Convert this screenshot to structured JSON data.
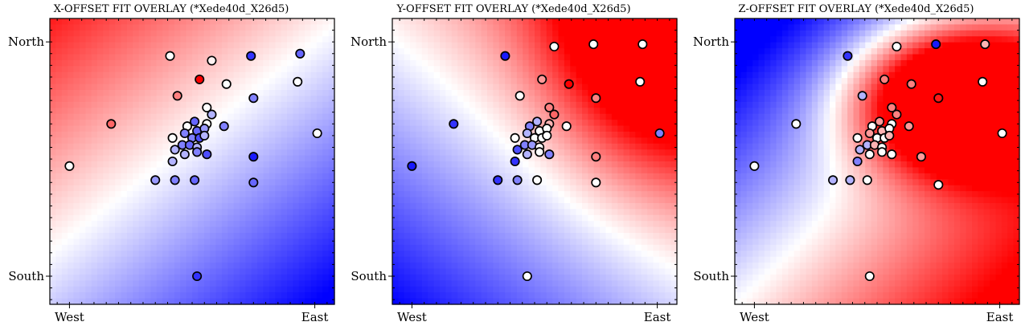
{
  "chart_data": [
    {
      "type": "scatter",
      "title": "X-OFFSET FIT OVERLAY (*Xede40d_X26d5)",
      "xticks": [
        "West",
        "East"
      ],
      "yticks": [
        "North",
        "South"
      ],
      "xlim": [
        -0.08,
        1.08
      ],
      "ylim": [
        -0.12,
        1.1
      ],
      "background": {
        "kind": "linear",
        "vx": -1.0,
        "vy": 1.2,
        "bias": -0.2,
        "scale": 0.75
      },
      "points": [
        {
          "x": 0.41,
          "y": 0.94,
          "v": 0.0
        },
        {
          "x": 0.58,
          "y": 0.92,
          "v": 0.05
        },
        {
          "x": 0.74,
          "y": 0.94,
          "v": -0.8
        },
        {
          "x": 0.94,
          "y": 0.95,
          "v": -0.6
        },
        {
          "x": 0.53,
          "y": 0.84,
          "v": 1.0
        },
        {
          "x": 0.64,
          "y": 0.82,
          "v": 0.0
        },
        {
          "x": 0.93,
          "y": 0.83,
          "v": 0.0
        },
        {
          "x": 0.44,
          "y": 0.77,
          "v": 0.5
        },
        {
          "x": 0.75,
          "y": 0.76,
          "v": -0.5
        },
        {
          "x": 0.17,
          "y": 0.65,
          "v": 0.6
        },
        {
          "x": 0.56,
          "y": 0.72,
          "v": 0.0
        },
        {
          "x": 0.58,
          "y": 0.69,
          "v": -0.3
        },
        {
          "x": 0.51,
          "y": 0.66,
          "v": -0.6
        },
        {
          "x": 0.48,
          "y": 0.64,
          "v": 0.0
        },
        {
          "x": 0.56,
          "y": 0.65,
          "v": 0.0
        },
        {
          "x": 0.63,
          "y": 0.64,
          "v": -0.5
        },
        {
          "x": 0.42,
          "y": 0.59,
          "v": 0.0
        },
        {
          "x": 0.47,
          "y": 0.61,
          "v": -0.5
        },
        {
          "x": 0.52,
          "y": 0.62,
          "v": -0.6
        },
        {
          "x": 0.55,
          "y": 0.63,
          "v": -0.4
        },
        {
          "x": 0.5,
          "y": 0.59,
          "v": -0.5
        },
        {
          "x": 0.53,
          "y": 0.59,
          "v": -0.7
        },
        {
          "x": 0.55,
          "y": 0.6,
          "v": -0.3
        },
        {
          "x": 0.46,
          "y": 0.56,
          "v": -0.5
        },
        {
          "x": 0.49,
          "y": 0.56,
          "v": -0.6
        },
        {
          "x": 0.52,
          "y": 0.55,
          "v": -0.3
        },
        {
          "x": 0.43,
          "y": 0.54,
          "v": -0.3
        },
        {
          "x": 0.47,
          "y": 0.52,
          "v": -0.3
        },
        {
          "x": 0.52,
          "y": 0.53,
          "v": -0.5
        },
        {
          "x": 0.56,
          "y": 0.52,
          "v": -0.7
        },
        {
          "x": 0.42,
          "y": 0.49,
          "v": -0.3
        },
        {
          "x": 0.0,
          "y": 0.47,
          "v": 0.0
        },
        {
          "x": 0.75,
          "y": 0.51,
          "v": -0.9
        },
        {
          "x": 1.01,
          "y": 0.61,
          "v": 0.0
        },
        {
          "x": 0.35,
          "y": 0.41,
          "v": -0.4
        },
        {
          "x": 0.43,
          "y": 0.41,
          "v": -0.5
        },
        {
          "x": 0.51,
          "y": 0.41,
          "v": -0.6
        },
        {
          "x": 0.75,
          "y": 0.4,
          "v": -0.6
        },
        {
          "x": 0.52,
          "y": 0.0,
          "v": -0.8
        }
      ]
    },
    {
      "type": "scatter",
      "title": "Y-OFFSET FIT OVERLAY (*Xede40d_X26d5)",
      "xticks": [
        "West",
        "East"
      ],
      "yticks": [
        "North",
        "South"
      ],
      "xlim": [
        -0.08,
        1.08
      ],
      "ylim": [
        -0.12,
        1.1
      ],
      "background": {
        "kind": "blob",
        "base": {
          "vx": 0.9,
          "vy": 1.1,
          "bias": -1.05,
          "scale": 0.8
        },
        "blob": {
          "cx": 1.05,
          "cy": 1.05,
          "sx": 0.45,
          "sy": 0.55,
          "amp": 1.3
        }
      },
      "points": [
        {
          "x": 0.38,
          "y": 0.94,
          "v": -0.9
        },
        {
          "x": 0.58,
          "y": 0.98,
          "v": 0.0
        },
        {
          "x": 0.74,
          "y": 0.99,
          "v": 0.0
        },
        {
          "x": 0.94,
          "y": 0.99,
          "v": 0.0
        },
        {
          "x": 0.53,
          "y": 0.84,
          "v": 0.4
        },
        {
          "x": 0.64,
          "y": 0.82,
          "v": 1.0
        },
        {
          "x": 0.93,
          "y": 0.83,
          "v": 0.0
        },
        {
          "x": 0.44,
          "y": 0.77,
          "v": 0.0
        },
        {
          "x": 0.75,
          "y": 0.76,
          "v": 0.5
        },
        {
          "x": 0.17,
          "y": 0.65,
          "v": -0.8
        },
        {
          "x": 0.56,
          "y": 0.72,
          "v": 0.5
        },
        {
          "x": 0.58,
          "y": 0.69,
          "v": 0.6
        },
        {
          "x": 0.51,
          "y": 0.66,
          "v": -0.3
        },
        {
          "x": 0.48,
          "y": 0.64,
          "v": -0.5
        },
        {
          "x": 0.56,
          "y": 0.65,
          "v": 0.3
        },
        {
          "x": 0.63,
          "y": 0.64,
          "v": 0.0
        },
        {
          "x": 0.42,
          "y": 0.59,
          "v": 0.0
        },
        {
          "x": 0.47,
          "y": 0.61,
          "v": -0.3
        },
        {
          "x": 0.52,
          "y": 0.62,
          "v": 0.0
        },
        {
          "x": 0.55,
          "y": 0.63,
          "v": 0.0
        },
        {
          "x": 0.5,
          "y": 0.59,
          "v": 0.0
        },
        {
          "x": 0.53,
          "y": 0.59,
          "v": 0.0
        },
        {
          "x": 0.55,
          "y": 0.6,
          "v": 0.0
        },
        {
          "x": 0.46,
          "y": 0.56,
          "v": -0.5
        },
        {
          "x": 0.49,
          "y": 0.56,
          "v": -0.4
        },
        {
          "x": 0.52,
          "y": 0.55,
          "v": 0.0
        },
        {
          "x": 0.43,
          "y": 0.54,
          "v": -0.7
        },
        {
          "x": 0.47,
          "y": 0.52,
          "v": -0.3
        },
        {
          "x": 0.52,
          "y": 0.53,
          "v": 0.0
        },
        {
          "x": 0.56,
          "y": 0.52,
          "v": -0.5
        },
        {
          "x": 0.42,
          "y": 0.49,
          "v": -0.8
        },
        {
          "x": 0.0,
          "y": 0.47,
          "v": -0.9
        },
        {
          "x": 0.75,
          "y": 0.51,
          "v": 0.5
        },
        {
          "x": 1.01,
          "y": 0.61,
          "v": -0.5
        },
        {
          "x": 0.35,
          "y": 0.41,
          "v": -0.8
        },
        {
          "x": 0.43,
          "y": 0.41,
          "v": -0.5
        },
        {
          "x": 0.51,
          "y": 0.41,
          "v": 0.0
        },
        {
          "x": 0.75,
          "y": 0.4,
          "v": 0.0
        },
        {
          "x": 0.47,
          "y": 0.0,
          "v": 0.0
        }
      ]
    },
    {
      "type": "scatter",
      "title": "Z-OFFSET FIT OVERLAY (*Xede40d_X26d5)",
      "xticks": [
        "West",
        "East"
      ],
      "yticks": [
        "North",
        "South"
      ],
      "xlim": [
        -0.08,
        1.08
      ],
      "ylim": [
        -0.12,
        1.1
      ],
      "background": {
        "kind": "blob",
        "base": {
          "vx": 1.1,
          "vy": -1.1,
          "bias": -0.05,
          "scale": 0.95
        },
        "blob": {
          "cx": 0.85,
          "cy": 0.75,
          "sx": 0.42,
          "sy": 0.3,
          "amp": 2.4
        }
      },
      "points": [
        {
          "x": 0.38,
          "y": 0.94,
          "v": -0.8
        },
        {
          "x": 0.58,
          "y": 0.98,
          "v": 0.0
        },
        {
          "x": 0.74,
          "y": 0.99,
          "v": -0.9
        },
        {
          "x": 0.94,
          "y": 0.99,
          "v": 0.3
        },
        {
          "x": 0.53,
          "y": 0.84,
          "v": 0.5
        },
        {
          "x": 0.64,
          "y": 0.82,
          "v": 0.5
        },
        {
          "x": 0.93,
          "y": 0.83,
          "v": 0.0
        },
        {
          "x": 0.44,
          "y": 0.77,
          "v": -0.3
        },
        {
          "x": 0.75,
          "y": 0.76,
          "v": 0.9
        },
        {
          "x": 0.17,
          "y": 0.65,
          "v": 0.0
        },
        {
          "x": 0.56,
          "y": 0.72,
          "v": 0.5
        },
        {
          "x": 0.58,
          "y": 0.69,
          "v": 0.5
        },
        {
          "x": 0.51,
          "y": 0.66,
          "v": 0.4
        },
        {
          "x": 0.48,
          "y": 0.64,
          "v": 0.0
        },
        {
          "x": 0.56,
          "y": 0.65,
          "v": 0.0
        },
        {
          "x": 0.63,
          "y": 0.64,
          "v": 0.4
        },
        {
          "x": 0.42,
          "y": 0.59,
          "v": 0.0
        },
        {
          "x": 0.47,
          "y": 0.61,
          "v": 0.4
        },
        {
          "x": 0.52,
          "y": 0.62,
          "v": 0.3
        },
        {
          "x": 0.55,
          "y": 0.63,
          "v": 0.0
        },
        {
          "x": 0.5,
          "y": 0.59,
          "v": 0.0
        },
        {
          "x": 0.53,
          "y": 0.59,
          "v": 0.0
        },
        {
          "x": 0.55,
          "y": 0.6,
          "v": 0.3
        },
        {
          "x": 0.46,
          "y": 0.56,
          "v": -0.3
        },
        {
          "x": 0.49,
          "y": 0.56,
          "v": 0.3
        },
        {
          "x": 0.52,
          "y": 0.55,
          "v": 0.0
        },
        {
          "x": 0.43,
          "y": 0.54,
          "v": -0.3
        },
        {
          "x": 0.47,
          "y": 0.52,
          "v": 0.0
        },
        {
          "x": 0.52,
          "y": 0.53,
          "v": 0.0
        },
        {
          "x": 0.56,
          "y": 0.52,
          "v": 0.0
        },
        {
          "x": 0.42,
          "y": 0.49,
          "v": -0.5
        },
        {
          "x": 0.0,
          "y": 0.47,
          "v": 0.0
        },
        {
          "x": 0.68,
          "y": 0.51,
          "v": 0.4
        },
        {
          "x": 1.01,
          "y": 0.61,
          "v": 0.0
        },
        {
          "x": 0.32,
          "y": 0.41,
          "v": -0.3
        },
        {
          "x": 0.39,
          "y": 0.41,
          "v": -0.3
        },
        {
          "x": 0.46,
          "y": 0.41,
          "v": 0.0
        },
        {
          "x": 0.75,
          "y": 0.39,
          "v": 0.0
        },
        {
          "x": 0.47,
          "y": 0.0,
          "v": 0.0
        }
      ]
    }
  ]
}
